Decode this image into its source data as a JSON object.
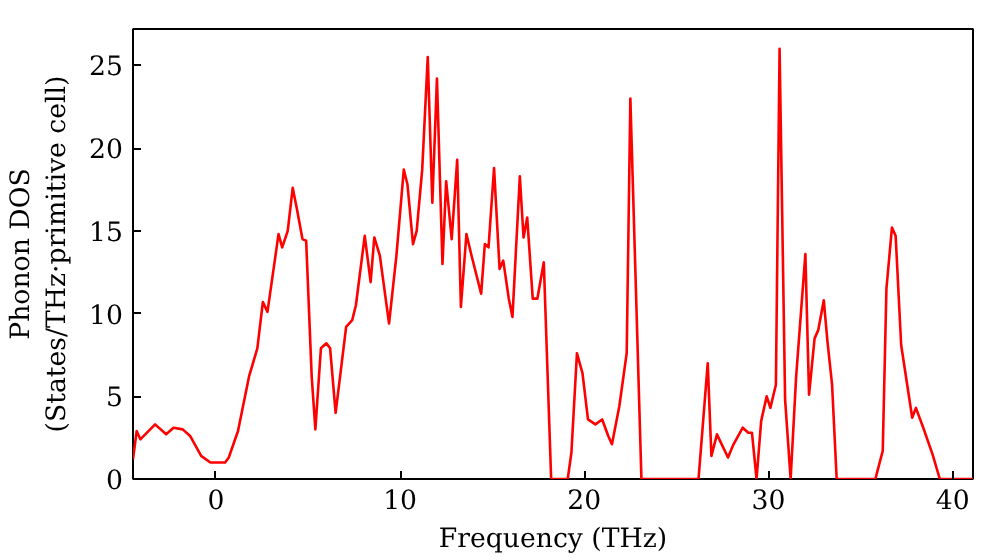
{
  "chart_data": {
    "type": "line",
    "xlabel": "Frequency (THz)",
    "ylabel": "Phonon DOS\n(States/THz·primitive cell)",
    "xlim": [
      -4.5,
      41.1
    ],
    "ylim": [
      0,
      27.2
    ],
    "xticks": [
      0,
      10,
      20,
      30,
      40
    ],
    "yticks": [
      0,
      5,
      10,
      15,
      20,
      25
    ],
    "grid": false,
    "series": [
      {
        "color": "#ff0000",
        "x": [
          -4.5,
          -4.3,
          -4.1,
          -3.3,
          -2.7,
          -2.3,
          -1.8,
          -1.4,
          -0.8,
          -0.3,
          0.5,
          0.7,
          1.2,
          1.8,
          2.25,
          2.55,
          2.8,
          3.4,
          3.6,
          3.9,
          4.17,
          4.4,
          4.7,
          4.9,
          5.2,
          5.4,
          5.7,
          6.0,
          6.2,
          6.5,
          7.07,
          7.4,
          7.6,
          8.08,
          8.4,
          8.6,
          8.9,
          9.4,
          9.8,
          10.2,
          10.4,
          10.7,
          10.9,
          11.2,
          11.5,
          11.75,
          12.0,
          12.3,
          12.5,
          12.8,
          13.1,
          13.3,
          13.6,
          13.9,
          14.4,
          14.6,
          14.8,
          15.1,
          15.4,
          15.6,
          15.9,
          16.1,
          16.5,
          16.7,
          16.9,
          17.2,
          17.45,
          17.8,
          18.2,
          19.1,
          19.3,
          19.6,
          19.9,
          20.2,
          20.6,
          20.97,
          21.3,
          21.5,
          21.9,
          22.3,
          22.5,
          23.1,
          26.2,
          26.7,
          26.9,
          27.2,
          27.8,
          28.1,
          28.6,
          28.9,
          29.1,
          29.35,
          29.6,
          29.9,
          30.1,
          30.4,
          30.6,
          30.9,
          31.2,
          31.5,
          32.0,
          32.2,
          32.5,
          32.7,
          33.0,
          33.2,
          33.45,
          33.7,
          35.8,
          36.2,
          36.4,
          36.7,
          36.9,
          37.2,
          37.8,
          38.0,
          38.4,
          38.9,
          39.3,
          41.1
        ],
        "values": [
          1.2,
          2.9,
          2.4,
          3.3,
          2.7,
          3.1,
          3.0,
          2.6,
          1.4,
          1.0,
          1.0,
          1.3,
          2.9,
          6.2,
          7.9,
          10.7,
          10.1,
          14.8,
          14.0,
          15.0,
          17.6,
          16.3,
          14.5,
          14.4,
          6.2,
          3.0,
          7.9,
          8.2,
          7.9,
          4.0,
          9.2,
          9.6,
          10.5,
          14.7,
          11.9,
          14.6,
          13.5,
          9.4,
          13.5,
          18.7,
          17.8,
          14.2,
          15.0,
          18.7,
          25.5,
          16.7,
          24.2,
          13.0,
          18.0,
          14.5,
          19.3,
          10.4,
          14.8,
          13.4,
          11.2,
          14.2,
          14.0,
          18.8,
          12.7,
          13.2,
          10.9,
          9.8,
          18.3,
          14.6,
          15.8,
          10.9,
          10.9,
          13.1,
          0,
          0,
          1.6,
          7.6,
          6.4,
          3.6,
          3.3,
          3.6,
          2.6,
          2.1,
          4.4,
          7.6,
          23.0,
          0,
          0,
          7.0,
          1.4,
          2.7,
          1.3,
          2.1,
          3.1,
          2.8,
          2.8,
          0,
          3.5,
          5.0,
          4.3,
          5.7,
          26.0,
          4.8,
          0,
          6.2,
          13.6,
          5.1,
          8.5,
          9.0,
          10.8,
          8.3,
          5.7,
          0,
          0,
          1.7,
          11.5,
          15.2,
          14.7,
          8.1,
          3.7,
          4.3,
          3.1,
          1.5,
          0,
          0
        ]
      }
    ]
  }
}
